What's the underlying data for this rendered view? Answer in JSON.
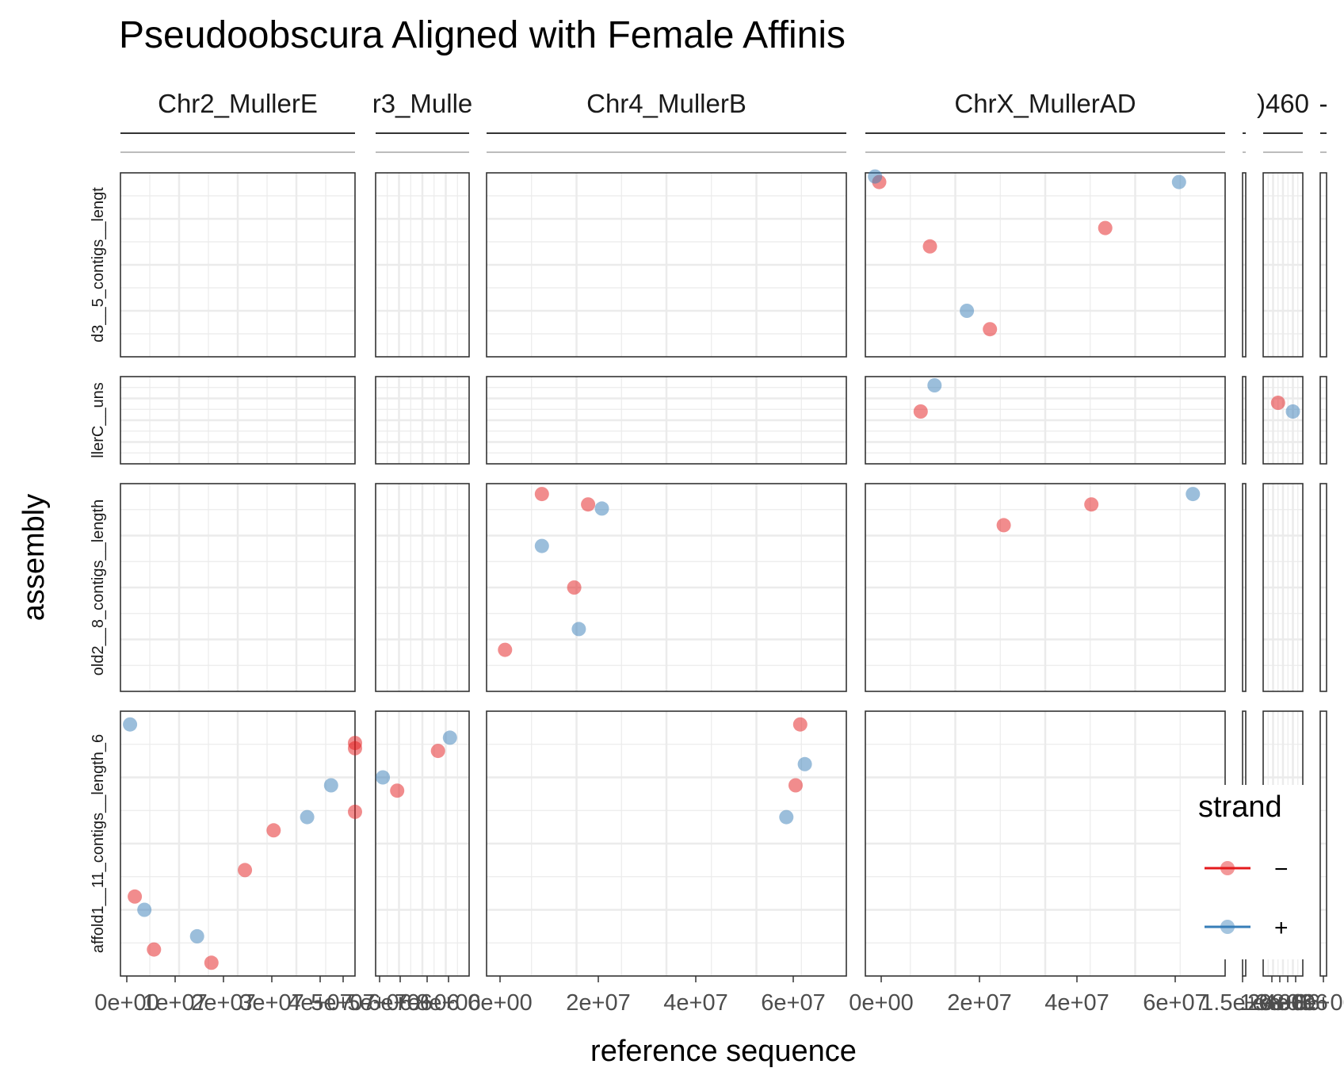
{
  "chart_data": {
    "type": "scatter",
    "title": "Pseudoobscura Aligned with Female Affinis",
    "xlabel": "reference sequence",
    "ylabel": "assembly",
    "colors": {
      "minus": "#e41a1c",
      "plus": "#377eb8"
    },
    "legend": {
      "title": "strand",
      "placement": "right",
      "entries": [
        {
          "label": "−",
          "color": "#e41a1c"
        },
        {
          "label": "+",
          "color": "#377eb8"
        }
      ]
    },
    "column_panels": [
      {
        "strip": "Chr2_MullerE",
        "ticks": [
          "0e+00",
          "1e+07",
          "2e+07",
          "3e+07",
          "4e+07",
          "5e+07"
        ]
      },
      {
        "strip": "r3_Mulle",
        "ticks": [
          "5e+06",
          "6e+06",
          "7e+06",
          "8e+06"
        ]
      },
      {
        "strip": "Chr4_MullerB",
        "ticks": [
          "0e+00",
          "2e+07",
          "4e+07",
          "6e+07"
        ]
      },
      {
        "strip": "ChrX_MullerAD",
        "ticks": [
          "0e+00",
          "2e+07",
          "4e+07",
          "6e+07"
        ]
      },
      {
        "strip": "",
        "ticks": [
          "1.5e+08"
        ]
      },
      {
        "strip": ")460",
        "ticks": [
          "1e+06",
          "2e+06",
          "3e+06",
          "4e+06"
        ]
      },
      {
        "strip": "-",
        "ticks": [
          "0e+00"
        ]
      }
    ],
    "row_panels": [
      {
        "strip": "d3__5_contigs__lengt"
      },
      {
        "strip": "llerC__uns"
      },
      {
        "strip": "old2__8_contigs__length"
      },
      {
        "strip": "affold1__11_contigs__length_6"
      }
    ],
    "series": [
      {
        "name": "−",
        "points": [
          {
            "col": 0,
            "row": 3,
            "x": 49000000.0,
            "y": 0.88
          },
          {
            "col": 0,
            "row": 3,
            "x": 48000000.0,
            "y": 0.86
          },
          {
            "col": 0,
            "row": 3,
            "x": 48500000.0,
            "y": 0.62
          },
          {
            "col": 0,
            "row": 3,
            "x": 31000000.0,
            "y": 0.55
          },
          {
            "col": 0,
            "row": 3,
            "x": 25000000.0,
            "y": 0.4
          },
          {
            "col": 0,
            "row": 3,
            "x": 2000000.0,
            "y": 0.3
          },
          {
            "col": 0,
            "row": 3,
            "x": 6000000.0,
            "y": 0.1
          },
          {
            "col": 0,
            "row": 3,
            "x": 18000000.0,
            "y": 0.05
          },
          {
            "col": 1,
            "row": 3,
            "x": 7500000.0,
            "y": 0.85
          },
          {
            "col": 1,
            "row": 3,
            "x": 5800000.0,
            "y": 0.7
          },
          {
            "col": 2,
            "row": 2,
            "x": 10000000.0,
            "y": 0.95
          },
          {
            "col": 2,
            "row": 2,
            "x": 20000000.0,
            "y": 0.9
          },
          {
            "col": 2,
            "row": 2,
            "x": 17000000.0,
            "y": 0.5
          },
          {
            "col": 2,
            "row": 2,
            "x": 2000000.0,
            "y": 0.2
          },
          {
            "col": 2,
            "row": 3,
            "x": 66000000.0,
            "y": 0.95
          },
          {
            "col": 2,
            "row": 3,
            "x": 65000000.0,
            "y": 0.72
          },
          {
            "col": 3,
            "row": 0,
            "x": 1000000.0,
            "y": 0.95
          },
          {
            "col": 3,
            "row": 0,
            "x": 12000000.0,
            "y": 0.6
          },
          {
            "col": 3,
            "row": 0,
            "x": 25000000.0,
            "y": 0.15
          },
          {
            "col": 3,
            "row": 0,
            "x": 50000000.0,
            "y": 0.7
          },
          {
            "col": 3,
            "row": 1,
            "x": 10000000.0,
            "y": 0.6
          },
          {
            "col": 3,
            "row": 2,
            "x": 28000000.0,
            "y": 0.8
          },
          {
            "col": 3,
            "row": 2,
            "x": 47000000.0,
            "y": 0.9
          },
          {
            "col": 5,
            "row": 1,
            "x": 2000000.0,
            "y": 0.7
          }
        ]
      },
      {
        "name": "+",
        "points": [
          {
            "col": 0,
            "row": 3,
            "x": 43000000.0,
            "y": 0.72
          },
          {
            "col": 0,
            "row": 3,
            "x": 38000000.0,
            "y": 0.6
          },
          {
            "col": 0,
            "row": 3,
            "x": 15000000.0,
            "y": 0.15
          },
          {
            "col": 0,
            "row": 3,
            "x": 4000000.0,
            "y": 0.25
          },
          {
            "col": 0,
            "row": 3,
            "x": 1000000.0,
            "y": 0.95
          },
          {
            "col": 1,
            "row": 3,
            "x": 8000000.0,
            "y": 0.9
          },
          {
            "col": 1,
            "row": 3,
            "x": 5200000.0,
            "y": 0.75
          },
          {
            "col": 2,
            "row": 2,
            "x": 23000000.0,
            "y": 0.88
          },
          {
            "col": 2,
            "row": 2,
            "x": 10000000.0,
            "y": 0.7
          },
          {
            "col": 2,
            "row": 2,
            "x": 18000000.0,
            "y": 0.3
          },
          {
            "col": 2,
            "row": 3,
            "x": 67000000.0,
            "y": 0.8
          },
          {
            "col": 2,
            "row": 3,
            "x": 63000000.0,
            "y": 0.6
          },
          {
            "col": 3,
            "row": 0,
            "x": 100000.0,
            "y": 0.98
          },
          {
            "col": 3,
            "row": 0,
            "x": 20000000.0,
            "y": 0.25
          },
          {
            "col": 3,
            "row": 0,
            "x": 66000000.0,
            "y": 0.95
          },
          {
            "col": 3,
            "row": 1,
            "x": 13000000.0,
            "y": 0.9
          },
          {
            "col": 3,
            "row": 2,
            "x": 69000000.0,
            "y": 0.95
          },
          {
            "col": 5,
            "row": 1,
            "x": 3500000.0,
            "y": 0.6
          }
        ]
      }
    ],
    "grid": true
  }
}
